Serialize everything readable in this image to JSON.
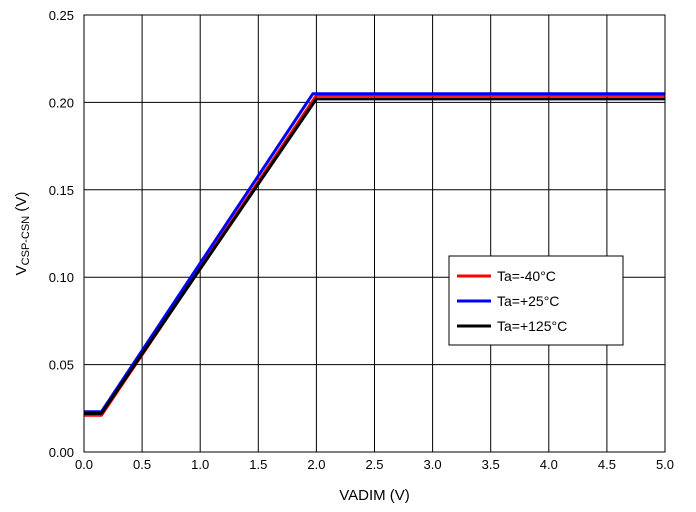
{
  "chart_data": {
    "type": "line",
    "xlabel": "VADIM (V)",
    "ylabel": {
      "main": "V",
      "sub": "CSP-CSN",
      "unit": " (V)"
    },
    "xlim": [
      0,
      5
    ],
    "ylim": [
      0,
      0.25
    ],
    "x_ticks": [
      "0.0",
      "0.5",
      "1.0",
      "1.5",
      "2.0",
      "2.5",
      "3.0",
      "3.5",
      "4.0",
      "4.5",
      "5.0"
    ],
    "y_ticks": [
      "0.00",
      "0.05",
      "0.10",
      "0.15",
      "0.20",
      "0.25"
    ],
    "grid": true,
    "legend_position": "center-right",
    "series": [
      {
        "name": "Ta=-40°C",
        "color": "#ff0000",
        "x": [
          0,
          0.15,
          2.0,
          5.0
        ],
        "y": [
          0.021,
          0.021,
          0.204,
          0.204
        ]
      },
      {
        "name": "Ta=+25°C",
        "color": "#0000ff",
        "x": [
          0,
          0.15,
          1.97,
          5.0
        ],
        "y": [
          0.023,
          0.023,
          0.205,
          0.205
        ]
      },
      {
        "name": "Ta=+125°C",
        "color": "#000000",
        "x": [
          0,
          0.15,
          2.0,
          5.0
        ],
        "y": [
          0.022,
          0.022,
          0.202,
          0.202
        ]
      }
    ]
  }
}
